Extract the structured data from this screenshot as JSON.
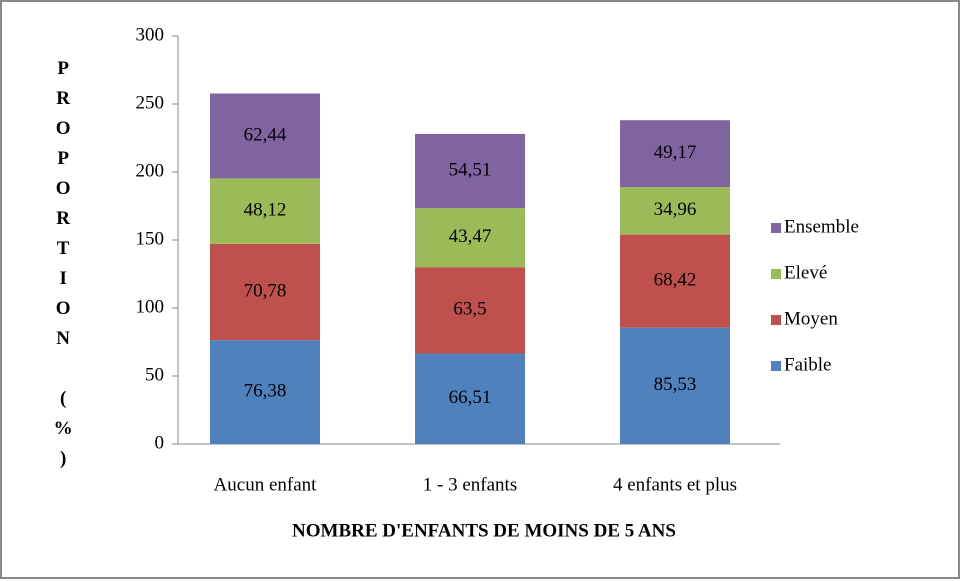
{
  "chart_data": {
    "type": "stacked_bar",
    "categories": [
      "Aucun enfant",
      "1 - 3 enfants",
      "4 enfants et plus"
    ],
    "series": [
      {
        "name": "Faible",
        "color": "#4f81bd",
        "values": [
          76.38,
          66.51,
          85.53
        ],
        "value_labels": [
          "76,38",
          "66,51",
          "85,53"
        ]
      },
      {
        "name": "Moyen",
        "color": "#c0504d",
        "values": [
          70.78,
          63.5,
          68.42
        ],
        "value_labels": [
          "70,78",
          "63,5",
          "68,42"
        ]
      },
      {
        "name": "Elevé",
        "color": "#9bbb59",
        "values": [
          48.12,
          43.47,
          34.96
        ],
        "value_labels": [
          "48,12",
          "43,47",
          "34,96"
        ]
      },
      {
        "name": "Ensemble",
        "color": "#8064a2",
        "values": [
          62.44,
          54.51,
          49.17
        ],
        "value_labels": [
          "62,44",
          "54,51",
          "49,17"
        ]
      }
    ],
    "ylim": [
      0,
      300
    ],
    "yticks": [
      0,
      50,
      100,
      150,
      200,
      250,
      300
    ],
    "x_label": "NOMBRE D'ENFANTS DE MOINS DE 5 ANS",
    "y_label": "PROPORTION (%)",
    "legend": "right"
  }
}
